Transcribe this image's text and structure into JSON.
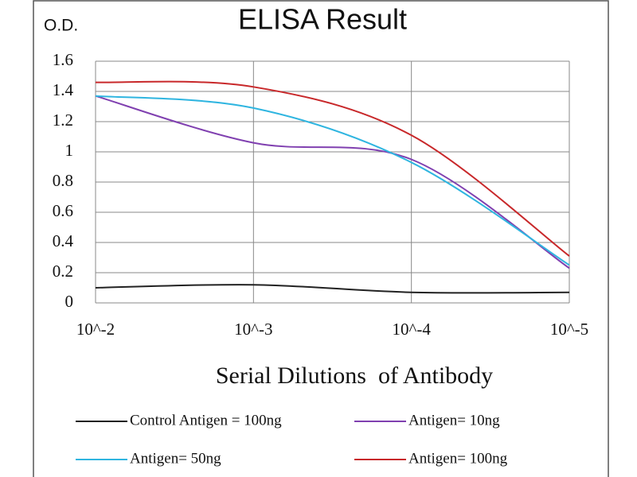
{
  "chart_data": {
    "type": "line",
    "title": "ELISA Result",
    "y_label": "O.D.",
    "x_label": "Serial Dilutions  of Antibody",
    "categories": [
      "10^-2",
      "10^-3",
      "10^-4",
      "10^-5"
    ],
    "series": [
      {
        "name": "Control Antigen = 100ng",
        "color": "#222222",
        "values": [
          0.1,
          0.12,
          0.07,
          0.07
        ]
      },
      {
        "name": "Antigen= 10ng",
        "color": "#8040b0",
        "values": [
          1.37,
          1.06,
          0.95,
          0.23
        ]
      },
      {
        "name": "Antigen= 50ng",
        "color": "#2fb5e0",
        "values": [
          1.37,
          1.29,
          0.93,
          0.25
        ]
      },
      {
        "name": "Antigen= 100ng",
        "color": "#c8282a",
        "values": [
          1.46,
          1.43,
          1.11,
          0.31
        ]
      }
    ],
    "ylim": [
      0,
      1.6
    ],
    "yticks": [
      0,
      0.2,
      0.4,
      0.6,
      0.8,
      1,
      1.2,
      1.4,
      1.6
    ],
    "grid": true,
    "legend": "bottom"
  }
}
